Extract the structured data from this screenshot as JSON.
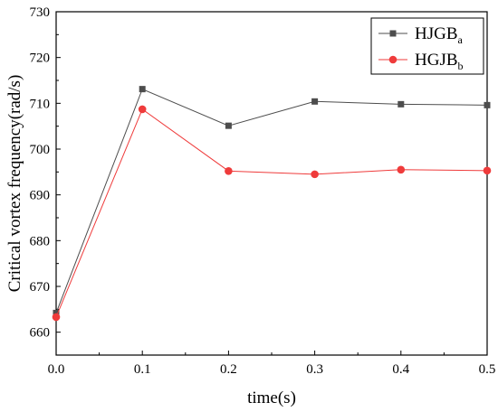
{
  "chart_data": {
    "type": "line",
    "xlabel": "time(s)",
    "ylabel": "Critical vortex frequency(rad/s)",
    "xlim": [
      0.0,
      0.5
    ],
    "ylim": [
      655,
      730
    ],
    "x_ticks": [
      "0.0",
      "0.1",
      "0.2",
      "0.3",
      "0.4",
      "0.5"
    ],
    "y_ticks": [
      "660",
      "670",
      "680",
      "690",
      "700",
      "710",
      "720",
      "730"
    ],
    "x": [
      0.0,
      0.1,
      0.2,
      0.3,
      0.4,
      0.5
    ],
    "grid": false,
    "legend_position": "top-right",
    "series": [
      {
        "name": "HJGB",
        "name_sub": "a",
        "marker": "square",
        "color": "#4d4d4d",
        "values": [
          664.2,
          713.1,
          705.1,
          710.4,
          709.8,
          709.6
        ]
      },
      {
        "name": "HGJB",
        "name_sub": "b",
        "marker": "circle",
        "color": "#ef3b3b",
        "values": [
          663.3,
          708.7,
          695.2,
          694.5,
          695.5,
          695.3
        ]
      }
    ]
  }
}
